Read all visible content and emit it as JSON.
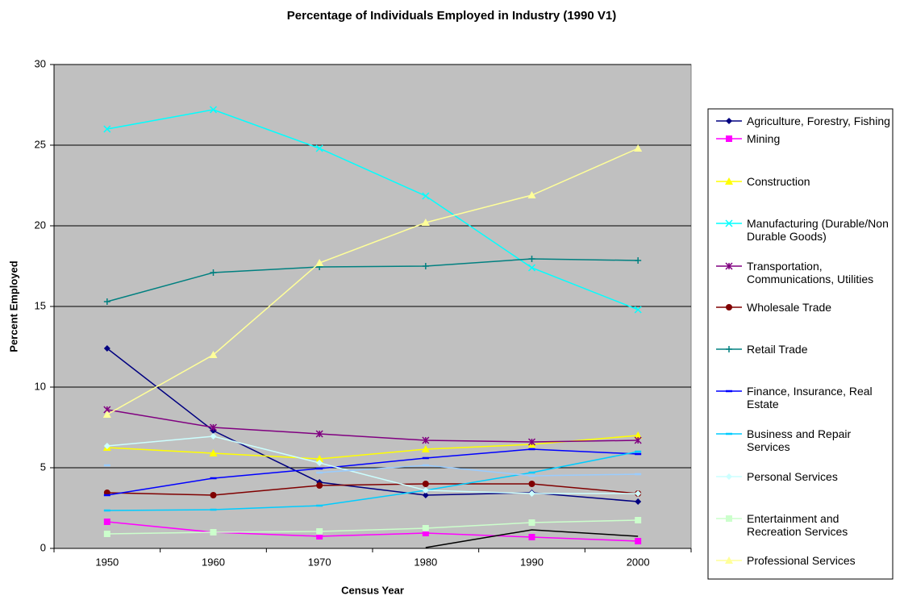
{
  "chart_data": {
    "type": "line",
    "title": "Percentage of Individuals Employed in Industry (1990 V1)",
    "x_label": "Census Year",
    "y_label": "Percent Employed",
    "categories": [
      "1950",
      "1960",
      "1970",
      "1980",
      "1990",
      "2000"
    ],
    "ylim": [
      0,
      30
    ],
    "yticks": [
      0,
      5,
      10,
      15,
      20,
      25,
      30
    ],
    "grid": true,
    "legend": "right",
    "series": [
      {
        "name": "Agriculture, Forestry, Fishing",
        "color": "#000080",
        "marker": "diamond",
        "values": [
          12.4,
          7.3,
          4.1,
          3.3,
          3.45,
          2.9
        ]
      },
      {
        "name": "Mining",
        "color": "#ff00ff",
        "marker": "square",
        "values": [
          1.65,
          1.0,
          0.75,
          0.95,
          0.7,
          0.45
        ]
      },
      {
        "name": "Construction",
        "color": "#ffff00",
        "marker": "triangle",
        "values": [
          6.25,
          5.9,
          5.55,
          6.15,
          6.45,
          7.0
        ]
      },
      {
        "name": "Manufacturing (Durable/Non Durable Goods)",
        "color": "#00ffff",
        "marker": "x",
        "values": [
          26.0,
          27.2,
          24.8,
          21.85,
          17.4,
          14.8
        ]
      },
      {
        "name": "Transportation, Communications, Utilities",
        "color": "#800080",
        "marker": "star",
        "values": [
          8.6,
          7.5,
          7.1,
          6.7,
          6.6,
          6.7
        ]
      },
      {
        "name": "Wholesale Trade",
        "color": "#800000",
        "marker": "circle",
        "values": [
          3.45,
          3.3,
          3.9,
          4.0,
          4.0,
          3.4
        ]
      },
      {
        "name": "Retail Trade",
        "color": "#008080",
        "marker": "plus",
        "values": [
          15.3,
          17.1,
          17.45,
          17.5,
          17.95,
          17.85
        ]
      },
      {
        "name": "Finance, Insurance, Real Estate",
        "color": "#0000ff",
        "marker": "dash",
        "values": [
          3.3,
          4.35,
          4.95,
          5.6,
          6.15,
          5.85
        ]
      },
      {
        "name": "Business and Repair Services",
        "color": "#00ccff",
        "marker": "dash",
        "values": [
          2.35,
          2.4,
          2.65,
          3.6,
          4.7,
          6.0
        ]
      },
      {
        "name": "Personal Services",
        "color": "#ccffff",
        "marker": "diamond",
        "values": [
          6.35,
          6.95,
          5.3,
          3.6,
          3.4,
          3.4
        ]
      },
      {
        "name": "Entertainment and Recreation Services",
        "color": "#ccffcc",
        "marker": "square",
        "values": [
          0.9,
          1.0,
          1.05,
          1.25,
          1.6,
          1.75
        ]
      },
      {
        "name": "Professional Services",
        "color": "#ffff99",
        "marker": "triangle",
        "values": [
          8.3,
          12.0,
          17.7,
          20.2,
          21.9,
          24.8
        ]
      },
      {
        "color": "#99ccff",
        "marker": "dash",
        "values": [
          5.15,
          null,
          4.7,
          5.15,
          4.5,
          4.6
        ]
      },
      {
        "color": "#000000",
        "marker": "none",
        "values": [
          null,
          null,
          null,
          0.05,
          1.15,
          0.75
        ]
      }
    ]
  }
}
